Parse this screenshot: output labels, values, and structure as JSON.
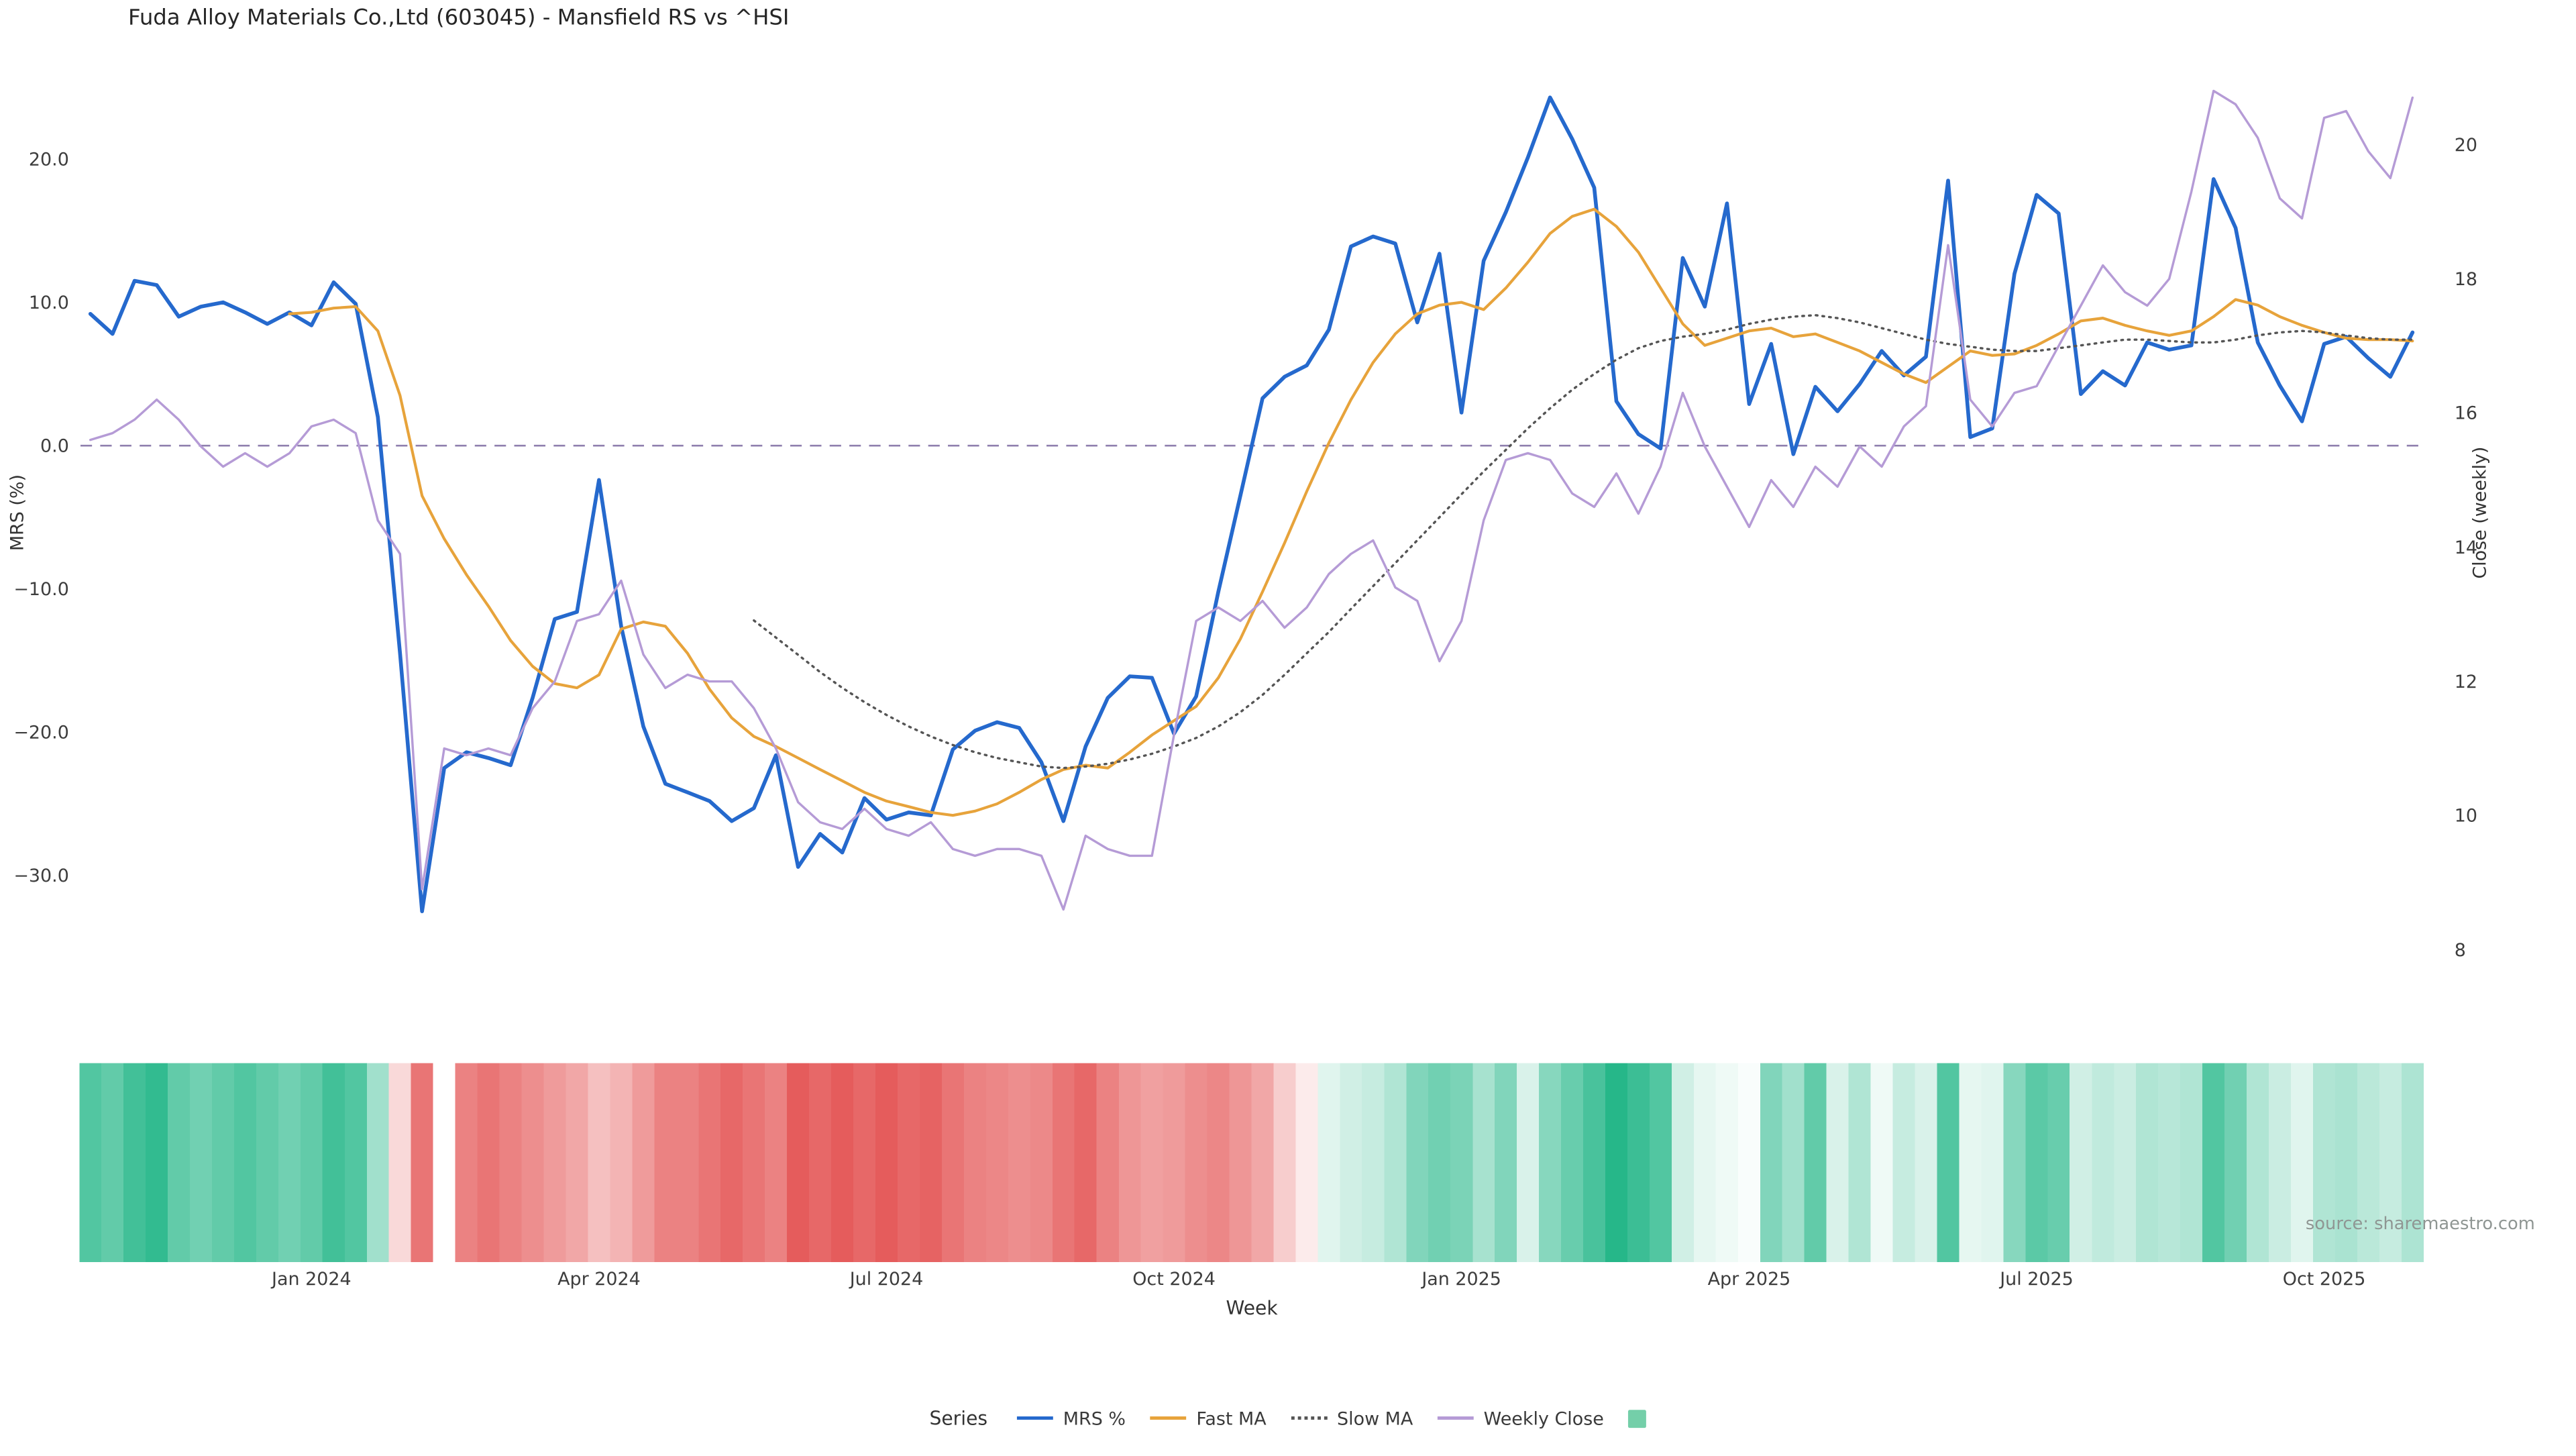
{
  "legend": {
    "title": "Series"
  },
  "chart_data": {
    "type": "line",
    "title": "Fuda Alloy Materials Co.,Ltd (603045) - Mansfield RS vs ^HSI",
    "xlabel": "Week",
    "ylabel_left": "MRS (%)",
    "ylabel_right": "Close (weekly)",
    "source": "source: sharemaestro.com",
    "n_points": 106,
    "x_tick_labels": [
      "Jan 2024",
      "Apr 2024",
      "Jul 2024",
      "Oct 2024",
      "Jan 2025",
      "Apr 2025",
      "Jul 2025",
      "Oct 2025"
    ],
    "x_tick_indices": [
      10,
      23,
      36,
      49,
      62,
      75,
      88,
      101
    ],
    "y_left_ticks": [
      20.0,
      10.0,
      0.0,
      -10.0,
      -20.0,
      -30.0
    ],
    "y_right_ticks": [
      20,
      18,
      16,
      14,
      12,
      10,
      8
    ],
    "zero_line": {
      "value": 0,
      "color": "#8f7fae",
      "style": "dashed"
    },
    "series": [
      {
        "name": "MRS %",
        "axis": "left",
        "color": "#2569cd",
        "style": "solid",
        "width": 2.3,
        "values": [
          9.2,
          7.8,
          11.5,
          11.2,
          9.0,
          9.7,
          10.0,
          9.3,
          8.5,
          9.3,
          8.4,
          11.4,
          9.9,
          2.0,
          -14.5,
          -32.5,
          -22.5,
          -21.4,
          -21.8,
          -22.3,
          -17.6,
          -12.1,
          -11.6,
          -2.4,
          -12.6,
          -19.6,
          -23.6,
          -24.2,
          -24.8,
          -26.2,
          -25.3,
          -21.6,
          -29.4,
          -27.1,
          -28.4,
          -24.6,
          -26.1,
          -25.6,
          -25.8,
          -21.2,
          -19.9,
          -19.3,
          -19.7,
          -22.1,
          -26.2,
          -21.0,
          -17.6,
          -16.1,
          -16.2,
          -20.1,
          -17.5,
          -10.2,
          -3.5,
          3.3,
          4.8,
          5.6,
          8.1,
          13.9,
          14.6,
          14.1,
          8.6,
          13.4,
          2.3,
          12.9,
          16.3,
          20.1,
          24.3,
          21.4,
          18.0,
          3.1,
          0.8,
          -0.2,
          13.1,
          9.7,
          16.9,
          2.9,
          7.1,
          -0.6,
          4.1,
          2.4,
          4.3,
          6.6,
          4.9,
          6.2,
          18.5,
          0.6,
          1.2,
          12.0,
          17.5,
          16.2,
          3.6,
          5.2,
          4.2,
          7.2,
          6.7,
          7.0,
          18.6,
          15.2,
          7.2,
          4.2,
          1.7,
          7.1,
          7.6,
          6.1,
          4.8,
          7.9
        ]
      },
      {
        "name": "Fast MA",
        "axis": "left",
        "color": "#e7a33b",
        "style": "solid",
        "width": 1.7,
        "values": [
          null,
          null,
          null,
          null,
          null,
          null,
          null,
          null,
          null,
          9.2,
          9.3,
          9.6,
          9.7,
          8.0,
          3.5,
          -3.5,
          -6.5,
          -9.0,
          -11.2,
          -13.6,
          -15.4,
          -16.6,
          -16.9,
          -16.0,
          -12.8,
          -12.3,
          -12.6,
          -14.5,
          -17.0,
          -19.0,
          -20.3,
          -21.0,
          -21.8,
          -22.6,
          -23.4,
          -24.2,
          -24.8,
          -25.2,
          -25.6,
          -25.8,
          -25.5,
          -25.0,
          -24.2,
          -23.3,
          -22.6,
          -22.3,
          -22.5,
          -21.4,
          -20.2,
          -19.2,
          -18.2,
          -16.2,
          -13.5,
          -10.2,
          -6.8,
          -3.2,
          0.2,
          3.2,
          5.8,
          7.8,
          9.2,
          9.8,
          10.0,
          9.5,
          11.0,
          12.8,
          14.8,
          16.0,
          16.5,
          15.3,
          13.5,
          11.0,
          8.5,
          7.0,
          7.5,
          8.0,
          8.2,
          7.6,
          7.8,
          7.2,
          6.6,
          5.8,
          5.0,
          4.4,
          5.5,
          6.6,
          6.3,
          6.4,
          7.0,
          7.8,
          8.7,
          8.9,
          8.4,
          8.0,
          7.7,
          8.0,
          9.0,
          10.2,
          9.8,
          9.0,
          8.4,
          7.9,
          7.5,
          7.4,
          7.4,
          7.3
        ]
      },
      {
        "name": "Slow MA",
        "axis": "left",
        "color": "#555555",
        "style": "dotted",
        "width": 1.4,
        "values": [
          null,
          null,
          null,
          null,
          null,
          null,
          null,
          null,
          null,
          null,
          null,
          null,
          null,
          null,
          null,
          null,
          null,
          null,
          null,
          null,
          null,
          null,
          null,
          null,
          null,
          null,
          null,
          null,
          null,
          null,
          -12.2,
          -13.4,
          -14.6,
          -15.8,
          -16.9,
          -17.9,
          -18.8,
          -19.6,
          -20.3,
          -20.9,
          -21.4,
          -21.8,
          -22.1,
          -22.4,
          -22.5,
          -22.4,
          -22.2,
          -21.9,
          -21.5,
          -21.0,
          -20.4,
          -19.6,
          -18.6,
          -17.4,
          -16.0,
          -14.5,
          -13.0,
          -11.4,
          -9.8,
          -8.2,
          -6.6,
          -5.0,
          -3.4,
          -1.8,
          -0.3,
          1.2,
          2.6,
          3.9,
          5.0,
          6.0,
          6.8,
          7.3,
          7.6,
          7.8,
          8.1,
          8.5,
          8.8,
          9.0,
          9.1,
          8.9,
          8.6,
          8.2,
          7.8,
          7.4,
          7.1,
          6.9,
          6.7,
          6.6,
          6.6,
          6.8,
          7.0,
          7.2,
          7.4,
          7.4,
          7.3,
          7.2,
          7.2,
          7.4,
          7.7,
          7.9,
          8.0,
          7.9,
          7.7,
          7.5,
          7.4,
          7.4
        ]
      },
      {
        "name": "Weekly Close",
        "axis": "right",
        "color": "#b59bd6",
        "style": "solid",
        "width": 1.4,
        "values": [
          15.6,
          15.7,
          15.9,
          16.2,
          15.9,
          15.5,
          15.2,
          15.4,
          15.2,
          15.4,
          15.8,
          15.9,
          15.7,
          14.4,
          13.9,
          8.9,
          11.0,
          10.9,
          11.0,
          10.9,
          11.6,
          12.0,
          12.9,
          13.0,
          13.5,
          12.4,
          11.9,
          12.1,
          12.0,
          12.0,
          11.6,
          11.0,
          10.2,
          9.9,
          9.8,
          10.1,
          9.8,
          9.7,
          9.9,
          9.5,
          9.4,
          9.5,
          9.5,
          9.4,
          8.6,
          9.7,
          9.5,
          9.4,
          9.4,
          11.2,
          12.9,
          13.1,
          12.9,
          13.2,
          12.8,
          13.1,
          13.6,
          13.9,
          14.1,
          13.4,
          13.2,
          12.3,
          12.9,
          14.4,
          15.3,
          15.4,
          15.3,
          14.8,
          14.6,
          15.1,
          14.5,
          15.2,
          16.3,
          15.5,
          14.9,
          14.3,
          15.0,
          14.6,
          15.2,
          14.9,
          15.5,
          15.2,
          15.8,
          16.1,
          18.5,
          16.2,
          15.8,
          16.3,
          16.4,
          17.0,
          17.6,
          18.2,
          17.8,
          17.6,
          18.0,
          19.3,
          20.8,
          20.6,
          20.1,
          19.2,
          18.9,
          20.4,
          20.5,
          19.9,
          19.5,
          20.7
        ]
      }
    ],
    "heatmap": {
      "description": "weekly signal strip, green positive / red negative, -1..1",
      "positive_color": "#26b789",
      "negative_color": "#e35252",
      "legend_color": "#74cfa9",
      "values": [
        0.55,
        0.5,
        0.6,
        0.65,
        0.5,
        0.45,
        0.5,
        0.55,
        0.5,
        0.45,
        0.5,
        0.6,
        0.55,
        0.3,
        -0.15,
        -0.55,
        0.0,
        -0.5,
        -0.55,
        -0.5,
        -0.45,
        -0.4,
        -0.35,
        -0.25,
        -0.3,
        -0.4,
        -0.5,
        -0.5,
        -0.55,
        -0.6,
        -0.55,
        -0.5,
        -0.65,
        -0.6,
        -0.65,
        -0.6,
        -0.65,
        -0.6,
        -0.62,
        -0.55,
        -0.5,
        -0.48,
        -0.45,
        -0.47,
        -0.55,
        -0.6,
        -0.5,
        -0.42,
        -0.38,
        -0.4,
        -0.45,
        -0.48,
        -0.42,
        -0.35,
        -0.2,
        -0.08,
        0.1,
        0.15,
        0.18,
        0.25,
        0.4,
        0.45,
        0.42,
        0.28,
        0.4,
        0.12,
        0.38,
        0.48,
        0.58,
        0.7,
        0.62,
        0.55,
        0.15,
        0.08,
        0.05,
        0.02,
        0.4,
        0.3,
        0.5,
        0.12,
        0.25,
        0.05,
        0.18,
        0.12,
        0.55,
        0.08,
        0.1,
        0.38,
        0.52,
        0.48,
        0.15,
        0.2,
        0.17,
        0.25,
        0.23,
        0.25,
        0.55,
        0.45,
        0.25,
        0.17,
        0.1,
        0.25,
        0.27,
        0.22,
        0.18,
        0.26
      ]
    }
  }
}
